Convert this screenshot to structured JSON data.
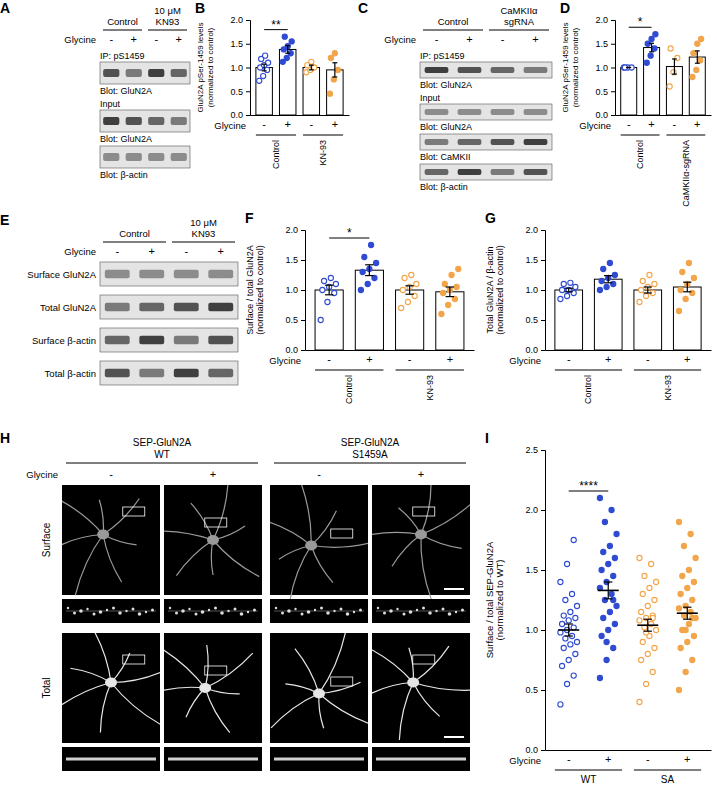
{
  "chart_data": [
    {
      "panel_label": "B",
      "type": "bar",
      "y_label": [
        "GluN2A pSer-1459 levels",
        "(normalized to control)"
      ],
      "x_label": "Glycine",
      "categories": [
        "-",
        "+",
        "-",
        "+"
      ],
      "group_labels": [
        "Control",
        "KN-93"
      ],
      "colors": [
        "#2f4bd1",
        "#2f4bd1",
        "#f2a54a",
        "#f2a54a"
      ],
      "marker": [
        "circle-open",
        "circle",
        "circle-open",
        "circle"
      ],
      "values": [
        1.0,
        1.38,
        1.0,
        0.95
      ],
      "errors": [
        0.07,
        0.08,
        0.05,
        0.15
      ],
      "points": [
        [
          0.72,
          0.82,
          0.95,
          1.0,
          1.05,
          1.1,
          1.18,
          1.25
        ],
        [
          1.12,
          1.2,
          1.3,
          1.38,
          1.45,
          1.55,
          1.65
        ],
        [
          0.9,
          0.95,
          1.0,
          1.05,
          1.12
        ],
        [
          0.45,
          0.75,
          0.95,
          1.2,
          1.3
        ]
      ],
      "ylim": [
        0,
        2.0
      ],
      "yticks": [
        {
          "value": 0,
          "label": "0.0"
        },
        0.5,
        {
          "value": 1,
          "label": "1.0"
        },
        1.5,
        {
          "value": 2,
          "label": "2.0"
        }
      ],
      "annotations": [
        {
          "text": "**",
          "from": 0,
          "to": 1
        }
      ]
    },
    {
      "panel_label": "D",
      "type": "bar",
      "y_label": [
        "GluN2A pSer-1459 levels",
        "(normalized to control)"
      ],
      "x_label": "Glycine",
      "categories": [
        "-",
        "+",
        "-",
        "+"
      ],
      "group_labels": [
        "Control",
        "CaMKIIα-sgRNA"
      ],
      "colors": [
        "#2f4bd1",
        "#2f4bd1",
        "#f2a54a",
        "#f2a54a"
      ],
      "marker": [
        "circle-open",
        "circle",
        "circle-open",
        "circle"
      ],
      "values": [
        1.0,
        1.42,
        1.02,
        1.22
      ],
      "errors": [
        0,
        0.09,
        0.16,
        0.13
      ],
      "points": [
        [
          1.0,
          1.0,
          1.0,
          1.0
        ],
        [
          1.1,
          1.25,
          1.4,
          1.5,
          1.6,
          1.7
        ],
        [
          0.6,
          0.9,
          1.2,
          1.4
        ],
        [
          0.8,
          0.95,
          1.15,
          1.3,
          1.5,
          1.6
        ]
      ],
      "ylim": [
        0,
        2.0
      ],
      "yticks": [
        {
          "value": 0,
          "label": "0.0"
        },
        0.5,
        {
          "value": 1,
          "label": "1.0"
        },
        1.5,
        {
          "value": 2,
          "label": "2.0"
        }
      ],
      "annotations": [
        {
          "text": "*",
          "from": 0,
          "to": 1
        }
      ]
    },
    {
      "panel_label": "F",
      "type": "bar",
      "y_label": [
        "Surface / total GluN2A",
        "(normalized to control)"
      ],
      "x_label": "Glycine",
      "categories": [
        "-",
        "+",
        "-",
        "+"
      ],
      "group_labels": [
        "Control",
        "KN-93"
      ],
      "colors": [
        "#2f4bd1",
        "#2f4bd1",
        "#f2a54a",
        "#f2a54a"
      ],
      "marker": [
        "circle-open",
        "circle",
        "circle-open",
        "circle"
      ],
      "values": [
        1.0,
        1.33,
        1.0,
        0.97
      ],
      "errors": [
        0.08,
        0.09,
        0.07,
        0.08
      ],
      "points": [
        [
          0.5,
          0.8,
          0.95,
          1.0,
          1.05,
          1.1,
          1.15,
          1.2
        ],
        [
          1.0,
          1.1,
          1.2,
          1.3,
          1.35,
          1.45,
          1.55,
          1.75
        ],
        [
          0.7,
          0.8,
          0.9,
          1.0,
          1.05,
          1.1,
          1.2,
          1.25
        ],
        [
          0.6,
          0.75,
          0.85,
          0.95,
          1.0,
          1.05,
          1.1,
          1.25,
          1.35
        ]
      ],
      "ylim": [
        0,
        2.0
      ],
      "yticks": [
        {
          "value": 0,
          "label": "0.0"
        },
        0.5,
        {
          "value": 1,
          "label": "1.0"
        },
        1.5,
        {
          "value": 2,
          "label": "2.0"
        }
      ],
      "annotations": [
        {
          "text": "*",
          "from": 0,
          "to": 1
        }
      ]
    },
    {
      "panel_label": "G",
      "type": "bar",
      "y_label": [
        "Total GluN2A / β-actin",
        "(normalized to control)"
      ],
      "x_label": "Glycine",
      "categories": [
        "-",
        "+",
        "-",
        "+"
      ],
      "group_labels": [
        "Control",
        "KN-93"
      ],
      "colors": [
        "#2f4bd1",
        "#2f4bd1",
        "#f2a54a",
        "#f2a54a"
      ],
      "marker": [
        "circle-open",
        "circle",
        "circle-open",
        "circle"
      ],
      "values": [
        1.0,
        1.18,
        1.0,
        1.05
      ],
      "errors": [
        0.03,
        0.06,
        0.05,
        0.08
      ],
      "points": [
        [
          0.85,
          0.9,
          0.95,
          1.0,
          1.0,
          1.05,
          1.1,
          1.12
        ],
        [
          1.0,
          1.05,
          1.1,
          1.15,
          1.2,
          1.25,
          1.35,
          1.45
        ],
        [
          0.8,
          0.9,
          0.95,
          1.0,
          1.05,
          1.1,
          1.15,
          1.25
        ],
        [
          0.65,
          0.85,
          0.95,
          1.0,
          1.1,
          1.2,
          1.3,
          1.45
        ]
      ],
      "ylim": [
        0,
        2.0
      ],
      "yticks": [
        {
          "value": 0,
          "label": "0.0"
        },
        0.5,
        {
          "value": 1,
          "label": "1.0"
        },
        1.5,
        {
          "value": 2,
          "label": "2.0"
        }
      ]
    },
    {
      "panel_label": "I",
      "type": "dot",
      "y_label": [
        "Surface / total SEP-GluN2A",
        "(normalized to WT)"
      ],
      "x_label": "Glycine",
      "categories": [
        "-",
        "+",
        "-",
        "+"
      ],
      "group_labels": [
        "WT",
        "SA"
      ],
      "colors": [
        "#2f4bd1",
        "#2f4bd1",
        "#f2a54a",
        "#f2a54a"
      ],
      "marker": [
        "circle-open",
        "circle",
        "circle-open",
        "circle"
      ],
      "values": [
        1.0,
        1.33,
        1.04,
        1.14
      ],
      "errors": [
        0.05,
        0.07,
        0.05,
        0.05
      ],
      "points": [
        [
          0.38,
          0.55,
          0.62,
          0.7,
          0.75,
          0.8,
          0.85,
          0.88,
          0.9,
          0.93,
          0.95,
          0.98,
          1.0,
          1.02,
          1.05,
          1.08,
          1.1,
          1.12,
          1.15,
          1.2,
          1.25,
          1.3,
          1.4,
          1.55,
          1.75
        ],
        [
          0.6,
          0.75,
          0.85,
          0.95,
          1.0,
          1.05,
          1.1,
          1.15,
          1.2,
          1.25,
          1.3,
          1.35,
          1.4,
          1.45,
          1.5,
          1.55,
          1.6,
          1.65,
          1.7,
          1.8,
          1.9,
          2.0,
          2.1,
          0.9,
          1.25
        ],
        [
          0.4,
          0.55,
          0.65,
          0.75,
          0.8,
          0.85,
          0.9,
          0.95,
          1.0,
          1.02,
          1.05,
          1.08,
          1.1,
          1.12,
          1.15,
          1.2,
          1.25,
          1.3,
          1.35,
          1.4,
          1.45,
          1.55,
          1.6,
          0.98,
          1.1
        ],
        [
          0.5,
          0.65,
          0.75,
          0.85,
          0.9,
          0.95,
          1.0,
          1.05,
          1.1,
          1.12,
          1.15,
          1.18,
          1.2,
          1.25,
          1.3,
          1.35,
          1.4,
          1.45,
          1.5,
          1.6,
          1.7,
          1.8,
          1.9,
          1.0,
          1.1
        ]
      ],
      "ylim": [
        0,
        2.5
      ],
      "yticks": [
        {
          "value": 0,
          "label": "0.0"
        },
        0.5,
        {
          "value": 1,
          "label": "1.0"
        },
        1.5,
        {
          "value": 2,
          "label": "2.0"
        },
        2.5
      ],
      "annotations": [
        {
          "text": "****",
          "from": 0,
          "to": 1
        }
      ]
    }
  ],
  "blots": [
    {
      "panel_label": "A",
      "groups": [
        [
          "Control"
        ],
        [
          "10 μM",
          "KN93"
        ]
      ],
      "treatment": "Glycine",
      "lanes": [
        "-",
        "+",
        "-",
        "+"
      ],
      "rows": [
        {
          "heading": "IP: pS1459",
          "caption": "Blot: GluN2A"
        },
        {
          "heading": "Input",
          "caption": "Blot: GluN2A"
        },
        {
          "caption": "Blot: β-actin"
        }
      ]
    },
    {
      "panel_label": "C",
      "groups": [
        [
          "Control"
        ],
        [
          "CaMKIIα",
          "sgRNA"
        ]
      ],
      "treatment": "Glycine",
      "lanes": [
        "-",
        "+",
        "-",
        "+"
      ],
      "rows": [
        {
          "heading": "IP: pS1459",
          "caption": "Blot: GluN2A"
        },
        {
          "heading": "Input",
          "caption": "Blot: GluN2A"
        },
        {
          "caption": "Blot: CaMKII"
        },
        {
          "caption": "Blot: β-actin"
        }
      ]
    },
    {
      "panel_label": "E",
      "groups": [
        [
          "Control"
        ],
        [
          "10 μM",
          "KN93"
        ]
      ],
      "treatment": "Glycine",
      "lanes": [
        "-",
        "+",
        "-",
        "+"
      ],
      "rows": [
        {
          "label": "Surface GluN2A"
        },
        {
          "label": "Total GluN2A"
        },
        {
          "label": "Surface β-actin"
        },
        {
          "label": "Total β-actin"
        }
      ]
    }
  ],
  "micrographs": {
    "panel_label": "H",
    "treatment": "Glycine",
    "columns": [
      {
        "title": [
          "SEP-GluN2A",
          "WT"
        ],
        "lanes": [
          "-",
          "+"
        ]
      },
      {
        "title": [
          "SEP-GluN2A",
          "S1459A"
        ],
        "lanes": [
          "-",
          "+"
        ]
      }
    ],
    "rows": [
      "Surface",
      "Total"
    ]
  }
}
